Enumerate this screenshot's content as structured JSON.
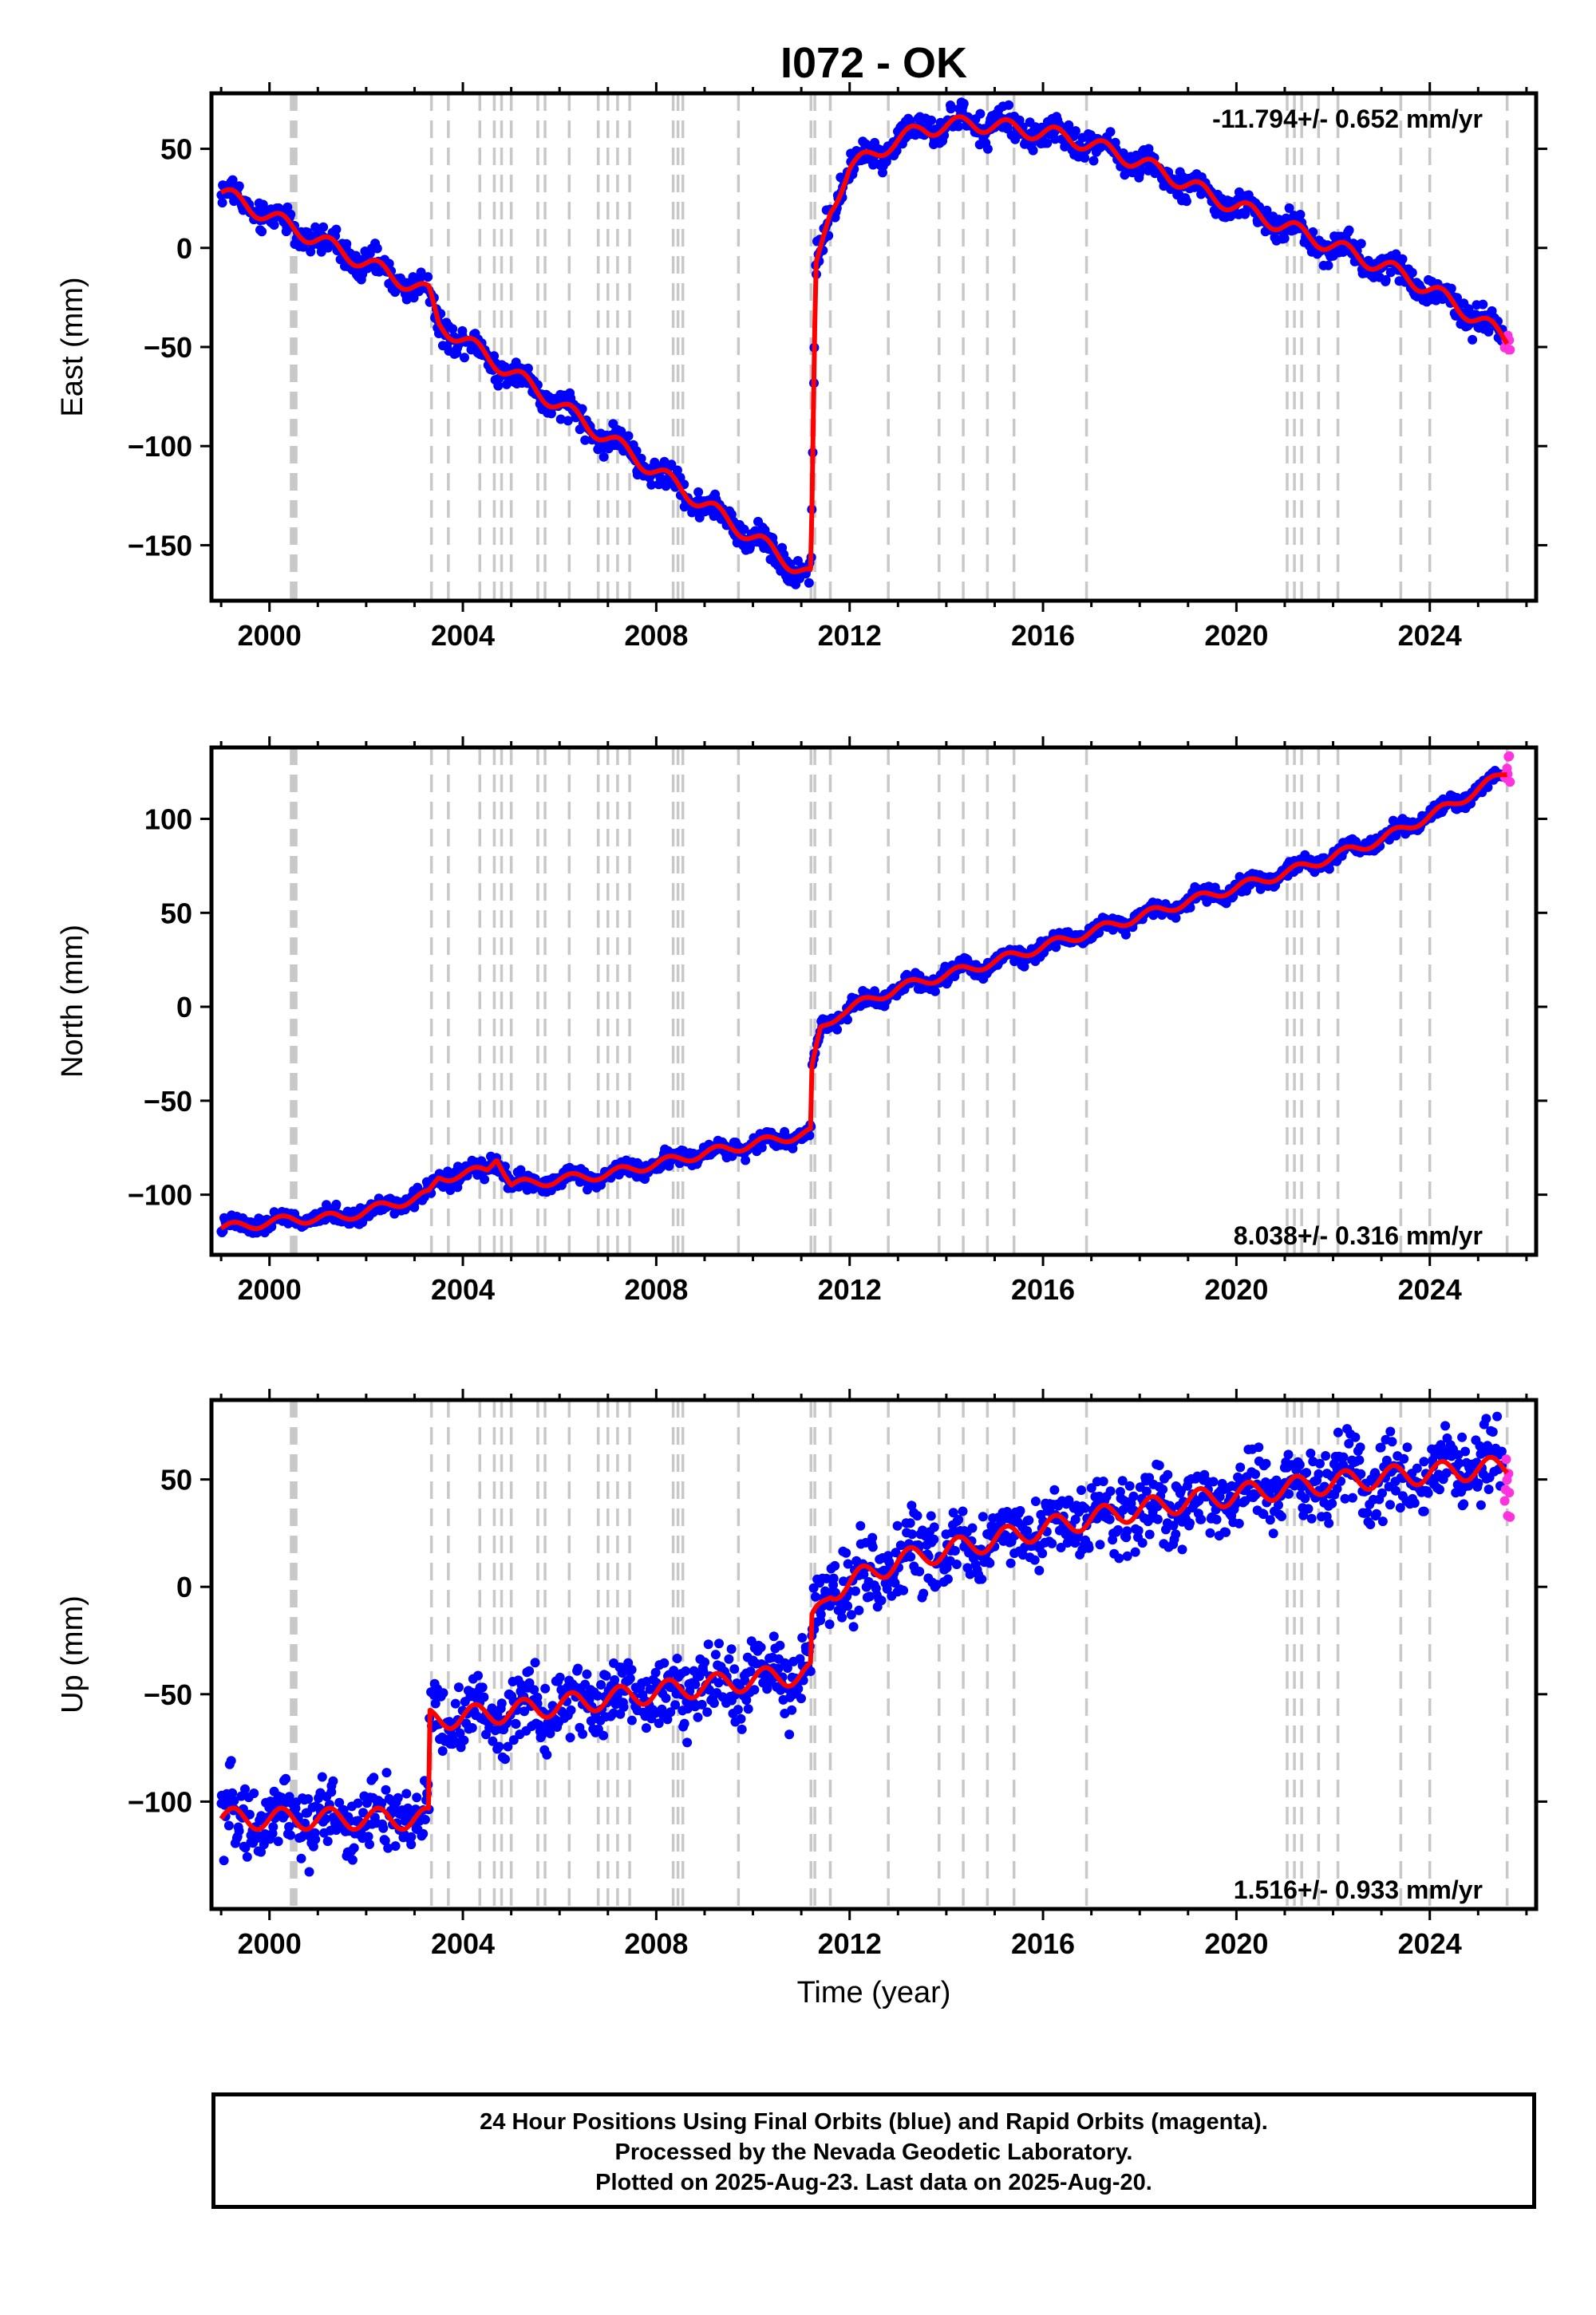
{
  "figure": {
    "title": "I072 - OK",
    "xlabel": "Time (year)",
    "xticks": [
      "2000",
      "2004",
      "2008",
      "2012",
      "2016",
      "2020",
      "2024"
    ],
    "colors": {
      "final": "#0000ff",
      "rapid": "#ff33dd",
      "model": "#ff0000",
      "event": "#c8c8c8"
    }
  },
  "caption": {
    "line1": "24 Hour Positions Using Final Orbits (blue) and Rapid Orbits (magenta).",
    "line2": "Processed by the Nevada Geodetic Laboratory.",
    "line3": "Plotted on 2025-Aug-23. Last data on 2025-Aug-20."
  },
  "chart_data": [
    {
      "type": "scatter",
      "name": "east",
      "ylabel": "East (mm)",
      "rate": "-11.794+/- 0.652 mm/yr",
      "xlim": [
        1998.8,
        2026.2
      ],
      "ylim": [
        -178,
        78
      ],
      "yticks": [
        50,
        0,
        -50,
        -100,
        -150
      ],
      "yticklabels": [
        "50",
        "0",
        "−50",
        "−100",
        "−150"
      ],
      "grid": false,
      "event_years": [
        2000.45,
        2000.5,
        2000.55,
        2003.35,
        2003.7,
        2004.35,
        2004.65,
        2004.8,
        2005.0,
        2005.55,
        2005.7,
        2006.2,
        2006.8,
        2007.0,
        2007.2,
        2007.45,
        2008.35,
        2008.45,
        2008.55,
        2009.7,
        2011.2,
        2011.28,
        2011.6,
        2012.8,
        2013.85,
        2014.35,
        2014.85,
        2015.4,
        2016.9,
        2021.05,
        2021.2,
        2021.35,
        2021.7,
        2022.1,
        2023.4,
        2024.0,
        2025.6
      ],
      "model": {
        "x": [
          1999.0,
          2000.5,
          2003.3,
          2003.5,
          2011.2,
          2011.21,
          2011.3,
          2011.6,
          2012.0,
          2012.8,
          2013.5,
          2014.5,
          2015.5,
          2016.5,
          2017.5,
          2018.5,
          2019.5,
          2020.5,
          2021.5,
          2022.5,
          2023.5,
          2024.5,
          2025.6
        ],
        "y": [
          28,
          10,
          -23,
          -38,
          -166,
          -150,
          -12,
          20,
          40,
          52,
          60,
          63,
          60,
          56,
          48,
          38,
          26,
          16,
          6,
          -4,
          -14,
          -28,
          -46
        ]
      },
      "seasonal_amp": 4,
      "scatter_spread": 5,
      "rapid": {
        "x": [
          2025.55,
          2025.66
        ],
        "y": [
          -54,
          -40
        ]
      }
    },
    {
      "type": "scatter",
      "name": "north",
      "ylabel": "North (mm)",
      "rate": "8.038+/- 0.316 mm/yr",
      "xlim": [
        1998.8,
        2026.2
      ],
      "ylim": [
        -132,
        138
      ],
      "yticks": [
        100,
        50,
        0,
        -50,
        -100
      ],
      "yticklabels": [
        "100",
        "50",
        "0",
        "−50",
        "−100"
      ],
      "grid": false,
      "event_years": [
        2000.45,
        2000.5,
        2000.55,
        2003.35,
        2003.7,
        2004.35,
        2004.65,
        2004.8,
        2005.0,
        2005.55,
        2005.7,
        2006.2,
        2006.8,
        2007.0,
        2007.2,
        2007.45,
        2008.35,
        2008.45,
        2008.55,
        2009.7,
        2011.2,
        2011.28,
        2011.6,
        2012.8,
        2013.85,
        2014.35,
        2014.85,
        2015.4,
        2016.9,
        2021.05,
        2021.2,
        2021.35,
        2021.7,
        2022.1,
        2023.4,
        2024.0,
        2025.6
      ],
      "model": {
        "x": [
          1999.0,
          2000.5,
          2001.5,
          2003.3,
          2003.5,
          2004.5,
          2004.7,
          2005.0,
          2007.0,
          2009.0,
          2011.2,
          2011.21,
          2011.4,
          2011.8,
          2013.0,
          2015.0,
          2017.0,
          2019.0,
          2021.0,
          2023.0,
          2024.5,
          2025.6
        ],
        "y": [
          -118,
          -113,
          -112,
          -100,
          -91,
          -87,
          -79,
          -95,
          -89,
          -78,
          -67,
          -35,
          -12,
          -3,
          10,
          24,
          40,
          56,
          71,
          89,
          108,
          125
        ]
      },
      "seasonal_amp": 2.5,
      "scatter_spread": 3,
      "rapid": {
        "x": [
          2025.55,
          2025.66
        ],
        "y": [
          118,
          134
        ]
      }
    },
    {
      "type": "scatter",
      "name": "up",
      "ylabel": "Up (mm)",
      "rate": "1.516+/- 0.933 mm/yr",
      "xlim": [
        1998.8,
        2026.2
      ],
      "ylim": [
        -150,
        87
      ],
      "yticks": [
        50,
        0,
        -50,
        -100
      ],
      "yticklabels": [
        "50",
        "0",
        "−50",
        "−100"
      ],
      "grid": false,
      "event_years": [
        2000.45,
        2000.5,
        2000.55,
        2003.35,
        2003.7,
        2004.35,
        2004.65,
        2004.8,
        2005.0,
        2005.55,
        2005.7,
        2006.2,
        2006.8,
        2007.0,
        2007.2,
        2007.45,
        2008.35,
        2008.45,
        2008.55,
        2009.7,
        2011.2,
        2011.28,
        2011.6,
        2012.8,
        2013.85,
        2014.35,
        2014.85,
        2015.4,
        2016.9,
        2021.05,
        2021.2,
        2021.35,
        2021.7,
        2022.1,
        2023.4,
        2024.0,
        2025.6
      ],
      "model": {
        "x": [
          1999.0,
          2003.3,
          2003.31,
          2005.0,
          2007.0,
          2009.0,
          2011.2,
          2011.21,
          2011.6,
          2013.0,
          2015.0,
          2017.0,
          2019.0,
          2021.0,
          2023.0,
          2025.6
        ],
        "y": [
          -108,
          -108,
          -62,
          -58,
          -52,
          -46,
          -40,
          -18,
          -2,
          12,
          22,
          32,
          40,
          46,
          51,
          56
        ]
      },
      "seasonal_amp": 5,
      "scatter_spread": 12,
      "rapid": {
        "x": [
          2025.55,
          2025.66
        ],
        "y": [
          32,
          62
        ]
      }
    }
  ]
}
